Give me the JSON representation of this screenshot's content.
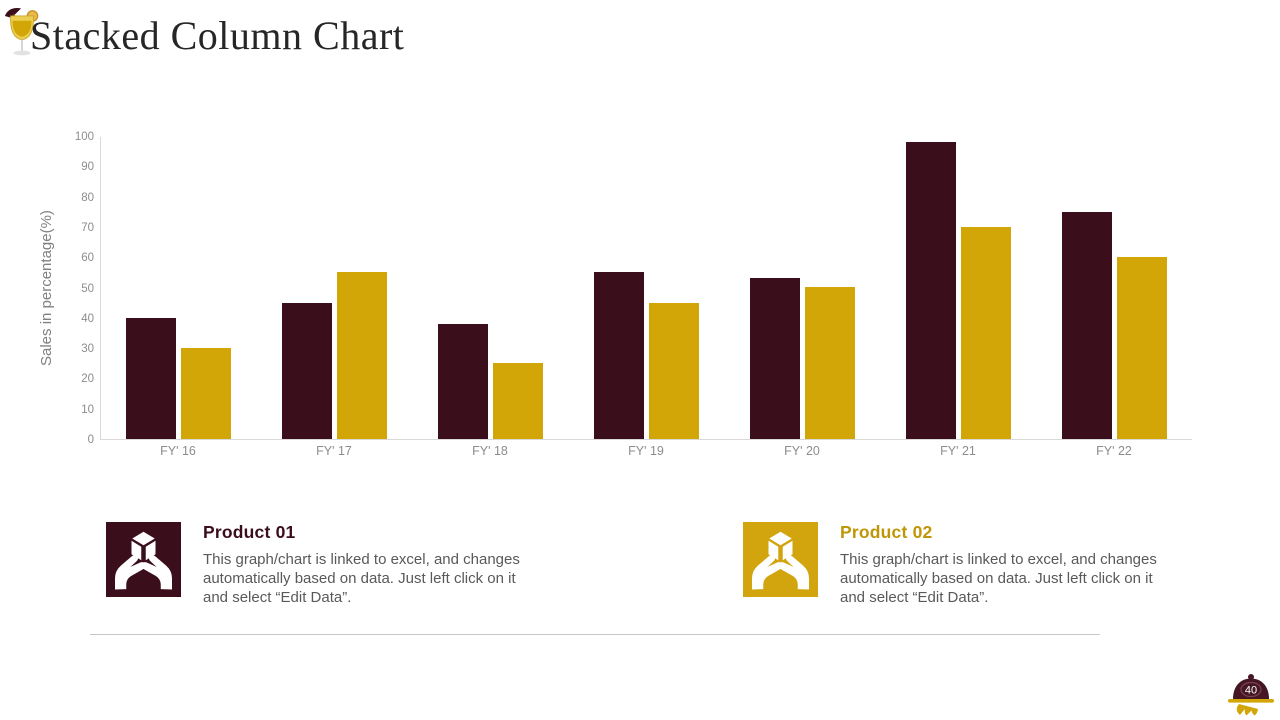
{
  "page": {
    "title": "Stacked Column Chart",
    "page_number": "40"
  },
  "colors": {
    "product1": "#3b0e1c",
    "product2": "#d2a607",
    "axis_line": "#d9d9d9",
    "tick_text": "#8c8c8c",
    "body_text": "#595959",
    "title_text": "#262626",
    "divider": "#c8c8c8"
  },
  "chart_data": {
    "type": "bar",
    "variant": "grouped-column",
    "title": "",
    "xlabel": "",
    "ylabel": "Sales in percentage(%)",
    "ylim": [
      0,
      100
    ],
    "ytick_step": 10,
    "grid": false,
    "legend_position": "below-as-cards",
    "categories": [
      "FY' 16",
      "FY' 17",
      "FY' 18",
      "FY' 19",
      "FY' 20",
      "FY' 21",
      "FY' 22"
    ],
    "series": [
      {
        "name": "Product 01",
        "color": "#3b0e1c",
        "values": [
          40,
          45,
          38,
          55,
          53,
          98,
          75
        ]
      },
      {
        "name": "Product 02",
        "color": "#d2a607",
        "values": [
          30,
          55,
          25,
          45,
          50,
          70,
          60
        ]
      }
    ]
  },
  "legend_cards": [
    {
      "title": "Product 01",
      "color": "#3b0e1c",
      "icon": "hands-cube-icon",
      "description": "This graph/chart is linked to excel, and changes automatically based on data. Just left click on it and select “Edit Data”."
    },
    {
      "title": "Product 02",
      "color": "#d2a40d",
      "icon": "hands-cube-icon",
      "description": "This graph/chart is linked to excel, and changes automatically based on data. Just left click on it and select “Edit Data”."
    }
  ],
  "icons": {
    "header": "cocktail-glass-icon",
    "footer": "cloche-tray-icon"
  }
}
